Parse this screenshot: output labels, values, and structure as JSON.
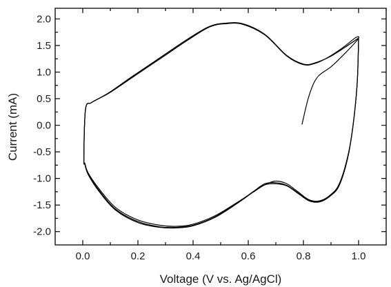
{
  "chart_data": {
    "type": "line",
    "title": "",
    "xlabel": "Voltage (V vs. Ag/AgCl)",
    "ylabel": "Current (mA)",
    "xlim": [
      -0.1,
      1.1
    ],
    "ylim": [
      -2.25,
      2.2
    ],
    "x_ticks": [
      0.0,
      0.2,
      0.4,
      0.6,
      0.8,
      1.0
    ],
    "x_tick_labels": [
      "0.0",
      "0.2",
      "0.4",
      "0.6",
      "0.8",
      "1.0"
    ],
    "y_ticks": [
      2.0,
      1.5,
      1.0,
      0.5,
      0.0,
      -0.5,
      -1.0,
      -1.5,
      -2.0
    ],
    "y_tick_labels": [
      "2.0",
      "1.5",
      "1.0",
      "0.5",
      "0.0",
      "-0.5",
      "-1.0",
      "-1.5",
      "-2.0"
    ],
    "grid": false,
    "line_color": "#000000",
    "series": [
      {
        "x": [
          0.795,
          0.82,
          0.85,
          0.9,
          0.95,
          0.998,
          0.99,
          0.94,
          0.88,
          0.84,
          0.8,
          0.74,
          0.66,
          0.58,
          0.52,
          0.46,
          0.38,
          0.28,
          0.18,
          0.1,
          0.05,
          0.03,
          0.01,
          0.004,
          0.008,
          0.02,
          0.06,
          0.12,
          0.2,
          0.28,
          0.34,
          0.4,
          0.48,
          0.56,
          0.62,
          0.66,
          0.7,
          0.74,
          0.78,
          0.82,
          0.86,
          0.9,
          0.93,
          0.96,
          0.98,
          0.995,
          1.0
        ],
        "y": [
          0.02,
          0.55,
          0.9,
          1.1,
          1.35,
          1.62,
          1.65,
          1.45,
          1.25,
          1.16,
          1.14,
          1.3,
          1.7,
          1.9,
          1.92,
          1.85,
          1.6,
          1.25,
          0.9,
          0.62,
          0.48,
          0.42,
          0.3,
          -0.62,
          -0.72,
          -0.9,
          -1.2,
          -1.55,
          -1.78,
          -1.88,
          -1.9,
          -1.86,
          -1.7,
          -1.45,
          -1.25,
          -1.12,
          -1.05,
          -1.1,
          -1.25,
          -1.4,
          -1.42,
          -1.3,
          -1.1,
          -0.6,
          0.0,
          0.8,
          1.62
        ]
      },
      {
        "x": [
          1.0,
          0.96,
          0.9,
          0.84,
          0.8,
          0.74,
          0.66,
          0.58,
          0.52,
          0.46,
          0.38,
          0.28,
          0.18,
          0.1,
          0.05,
          0.03,
          0.01,
          0.004,
          0.008,
          0.02,
          0.06,
          0.12,
          0.2,
          0.28,
          0.34,
          0.4,
          0.48,
          0.56,
          0.62,
          0.66,
          0.7,
          0.74,
          0.78,
          0.82,
          0.86,
          0.9,
          0.93,
          0.96,
          0.98,
          0.995,
          1.0
        ],
        "y": [
          1.64,
          1.5,
          1.3,
          1.17,
          1.15,
          1.31,
          1.71,
          1.91,
          1.92,
          1.86,
          1.62,
          1.27,
          0.92,
          0.63,
          0.48,
          0.42,
          0.3,
          -0.63,
          -0.74,
          -0.92,
          -1.23,
          -1.58,
          -1.81,
          -1.91,
          -1.92,
          -1.88,
          -1.72,
          -1.46,
          -1.24,
          -1.1,
          -1.08,
          -1.13,
          -1.27,
          -1.41,
          -1.43,
          -1.31,
          -1.12,
          -0.62,
          0.0,
          0.8,
          1.62
        ]
      },
      {
        "x": [
          1.0,
          0.96,
          0.9,
          0.84,
          0.8,
          0.74,
          0.66,
          0.58,
          0.52,
          0.46,
          0.38,
          0.28,
          0.18,
          0.1,
          0.05,
          0.03,
          0.01,
          0.004,
          0.008,
          0.02,
          0.06,
          0.12,
          0.2,
          0.28,
          0.34,
          0.4,
          0.48,
          0.56,
          0.62,
          0.66,
          0.7,
          0.74,
          0.78,
          0.82,
          0.86,
          0.9,
          0.93,
          0.96,
          0.98,
          0.995,
          1.0
        ],
        "y": [
          1.64,
          1.5,
          1.3,
          1.17,
          1.15,
          1.31,
          1.7,
          1.9,
          1.91,
          1.85,
          1.6,
          1.25,
          0.91,
          0.62,
          0.48,
          0.42,
          0.3,
          -0.63,
          -0.74,
          -0.93,
          -1.25,
          -1.6,
          -1.83,
          -1.92,
          -1.93,
          -1.89,
          -1.73,
          -1.47,
          -1.25,
          -1.12,
          -1.1,
          -1.14,
          -1.28,
          -1.42,
          -1.44,
          -1.32,
          -1.13,
          -0.63,
          0.0,
          0.8,
          1.62
        ]
      }
    ]
  }
}
